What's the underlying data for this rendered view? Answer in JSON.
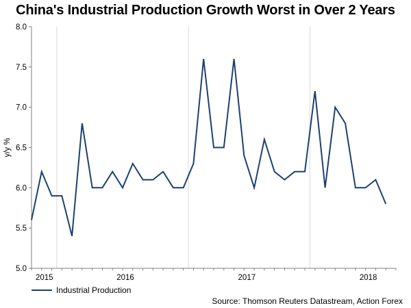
{
  "chart_data": {
    "type": "line",
    "title": "China's Industrial Production Growth Worst in Over 2 Years",
    "xlabel": "",
    "ylabel": "y/y %",
    "ylim": [
      5.0,
      8.0
    ],
    "yticks": [
      "5.0",
      "5.5",
      "6.0",
      "6.5",
      "7.0",
      "7.5",
      "8.0"
    ],
    "year_labels": [
      {
        "label": "2015",
        "pos": 1
      },
      {
        "label": "2016",
        "pos": 9
      },
      {
        "label": "2017",
        "pos": 21
      },
      {
        "label": "2018",
        "pos": 33
      }
    ],
    "year_dividers": [
      2.5,
      15.5,
      27.5
    ],
    "series": [
      {
        "name": "Industrial Production",
        "color": "#1c3f6e",
        "values": [
          5.6,
          6.2,
          5.9,
          5.9,
          5.4,
          6.8,
          6.0,
          6.0,
          6.2,
          6.0,
          6.3,
          6.1,
          6.1,
          6.2,
          6.0,
          6.0,
          6.3,
          7.6,
          6.5,
          6.5,
          7.6,
          6.4,
          6.0,
          6.6,
          6.2,
          6.1,
          6.2,
          6.2,
          7.2,
          6.0,
          7.0,
          6.8,
          6.0,
          6.0,
          6.1,
          5.8
        ]
      }
    ],
    "grid": false,
    "legend": "bottom-left"
  },
  "legend_label": "Industrial Production",
  "source": "Source: Thomson Reuters Datastream, Action Forex",
  "axis_color": "#7f7f7f",
  "line_color": "#1c3f6e"
}
